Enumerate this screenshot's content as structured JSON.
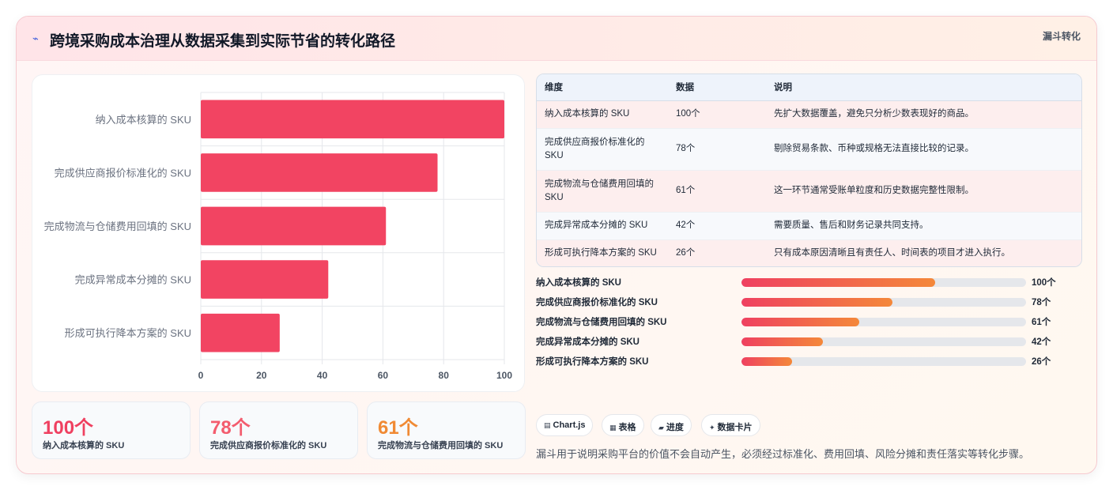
{
  "header": {
    "icon": "⌁",
    "title": "跨境采购成本治理从数据采集到实际节省的转化路径",
    "tag": "漏斗转化"
  },
  "chart_data": {
    "type": "bar",
    "orientation": "horizontal",
    "categories": [
      "纳入成本核算的 SKU",
      "完成供应商报价标准化的 SKU",
      "完成物流与仓储费用回填的 SKU",
      "完成异常成本分摊的 SKU",
      "形成可执行降本方案的 SKU"
    ],
    "values": [
      100,
      78,
      61,
      42,
      26
    ],
    "x_ticks": [
      "0",
      "20",
      "40",
      "60",
      "80",
      "100"
    ],
    "xlim": [
      0,
      100
    ],
    "bar_color": "#f24462",
    "grid": true
  },
  "stats": [
    {
      "value": "100个",
      "label": "纳入成本核算的 SKU",
      "color": "#ef4060"
    },
    {
      "value": "78个",
      "label": "完成供应商报价标准化的 SKU",
      "color": "#f35c6e"
    },
    {
      "value": "61个",
      "label": "完成物流与仓储费用回填的 SKU",
      "color": "#f08a34"
    }
  ],
  "table": {
    "headers": [
      "维度",
      "数据",
      "说明"
    ],
    "rows": [
      [
        "纳入成本核算的 SKU",
        "100个",
        "先扩大数据覆盖，避免只分析少数表现好的商品。"
      ],
      [
        "完成供应商报价标准化的 SKU",
        "78个",
        "剔除贸易条款、币种或规格无法直接比较的记录。"
      ],
      [
        "完成物流与仓储费用回填的 SKU",
        "61个",
        "这一环节通常受账单粒度和历史数据完整性限制。"
      ],
      [
        "完成异常成本分摊的 SKU",
        "42个",
        "需要质量、售后和财务记录共同支持。"
      ],
      [
        "形成可执行降本方案的 SKU",
        "26个",
        "只有成本原因清晰且有责任人、时间表的项目才进入执行。"
      ]
    ]
  },
  "progress": [
    {
      "label": "纳入成本核算的 SKU",
      "value": "100个",
      "fraction": 0.68
    },
    {
      "label": "完成供应商报价标准化的 SKU",
      "value": "78个",
      "fraction": 0.53
    },
    {
      "label": "完成物流与仓储费用回填的 SKU",
      "value": "61个",
      "fraction": 0.415
    },
    {
      "label": "完成异常成本分摊的 SKU",
      "value": "42个",
      "fraction": 0.285
    },
    {
      "label": "形成可执行降本方案的 SKU",
      "value": "26个",
      "fraction": 0.177
    }
  ],
  "chips": [
    {
      "icon": "▤",
      "label": "Chart.js"
    },
    {
      "icon": "▦",
      "label": "表格"
    },
    {
      "icon": "▰",
      "label": "进度"
    },
    {
      "icon": "✦",
      "label": "数据卡片"
    }
  ],
  "footer_note": "漏斗用于说明采购平台的价值不会自动产生，必须经过标准化、费用回填、风险分摊和责任落实等转化步骤。"
}
